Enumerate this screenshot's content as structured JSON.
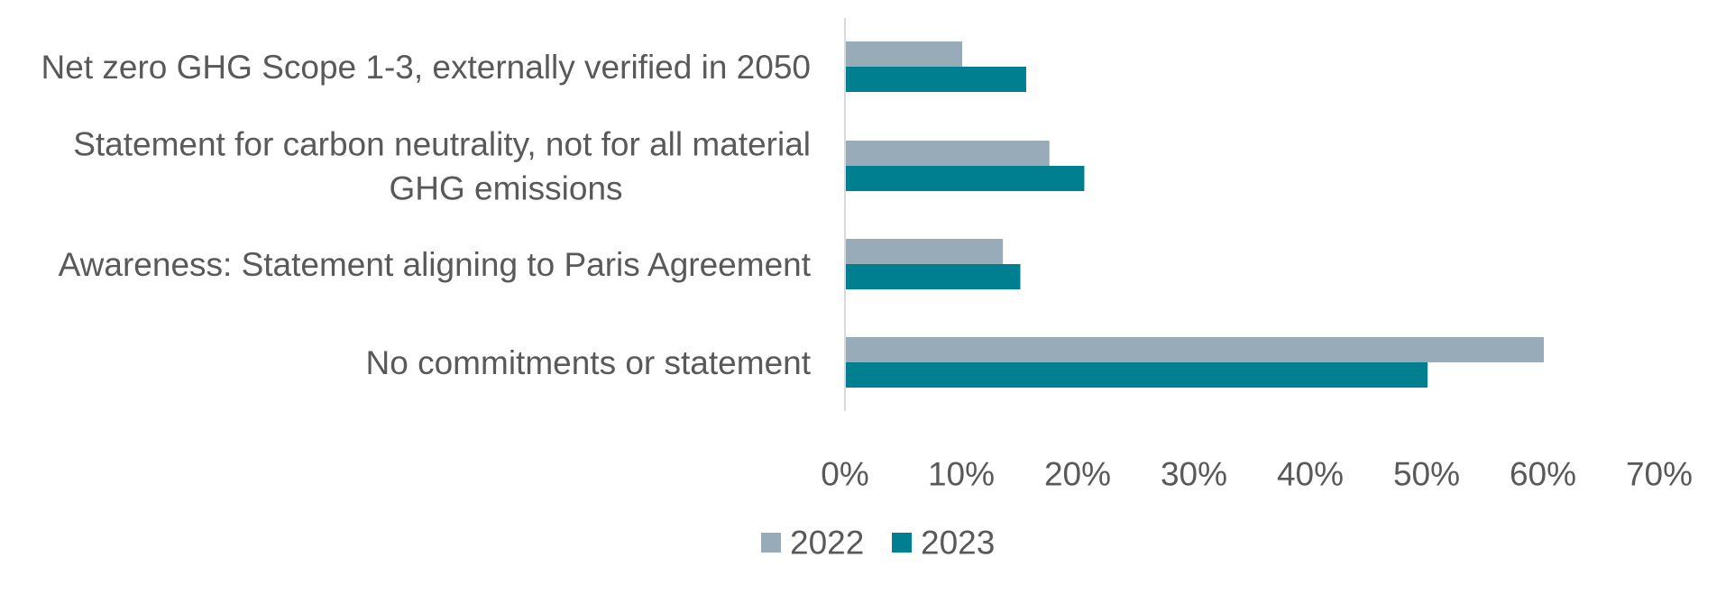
{
  "chart_data": {
    "type": "bar",
    "orientation": "horizontal",
    "categories": [
      [
        "Net zero GHG Scope 1-3, externally verified in 2050"
      ],
      [
        "Statement for carbon neutrality, not for all material",
        "GHG emissions"
      ],
      [
        "Awareness: Statement aligning to Paris Agreement"
      ],
      [
        "No commitments or statement"
      ]
    ],
    "series": [
      {
        "name": "2022",
        "color": "#97acb8",
        "values": [
          0.1,
          0.175,
          0.135,
          0.6
        ]
      },
      {
        "name": "2023",
        "color": "#007f91",
        "values": [
          0.155,
          0.205,
          0.15,
          0.5
        ]
      }
    ],
    "xlim": [
      0,
      0.7
    ],
    "ticks": [
      "0%",
      "10%",
      "20%",
      "30%",
      "40%",
      "50%",
      "60%",
      "70%"
    ],
    "title": "",
    "xlabel": "",
    "ylabel": "",
    "grid": false,
    "legend_position": "bottom"
  }
}
